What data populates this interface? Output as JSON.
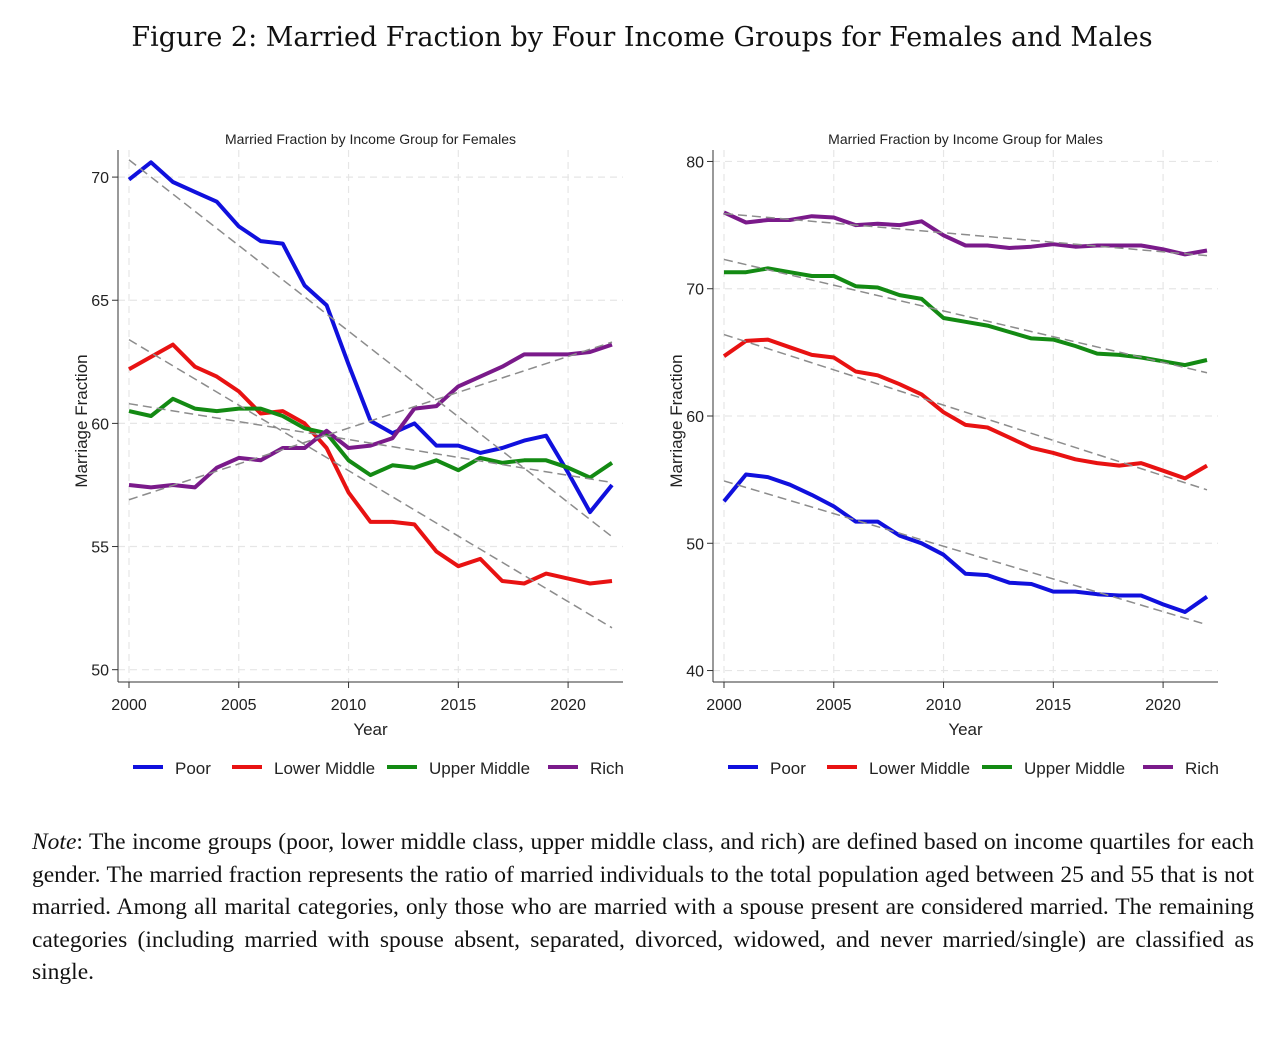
{
  "figure_title": "Figure 2: Married Fraction by Four Income Groups for Females and Males",
  "note": {
    "label": "Note",
    "text": ": The income groups (poor, lower middle class, upper middle class, and rich) are defined based on income quartiles for each gender. The married fraction represents the ratio of married individuals to the total population aged between 25 and 55 that is not married. Among all marital categories, only those who are married with a spouse present are considered married.  The remaining categories (including married with spouse absent, separated, divorced, widowed, and never married/single) are classified as single."
  },
  "colors": {
    "Poor": "#1010dd",
    "Lower Middle": "#e81212",
    "Upper Middle": "#138a13",
    "Rich": "#7a1a8a",
    "trend": "#8c8c8c"
  },
  "chart_data": [
    {
      "type": "line",
      "title": "Married Fraction by Income Group for Females",
      "xlabel": "Year",
      "ylabel": "Marriage Fraction",
      "xlim": [
        2000,
        2022
      ],
      "ylim": [
        49.5,
        71.1
      ],
      "xticks": [
        2000,
        2005,
        2010,
        2015,
        2020
      ],
      "yticks": [
        50,
        55,
        60,
        65,
        70
      ],
      "x": [
        2000,
        2001,
        2002,
        2003,
        2004,
        2005,
        2006,
        2007,
        2008,
        2009,
        2010,
        2011,
        2012,
        2013,
        2014,
        2015,
        2016,
        2017,
        2018,
        2019,
        2020,
        2021,
        2022
      ],
      "series": [
        {
          "name": "Poor",
          "values": [
            69.9,
            70.6,
            69.8,
            69.4,
            69.0,
            68.0,
            67.4,
            67.3,
            65.6,
            64.8,
            62.4,
            60.1,
            59.6,
            60.0,
            59.1,
            59.1,
            58.8,
            59.0,
            59.3,
            59.5,
            58.0,
            56.4,
            57.5
          ]
        },
        {
          "name": "Lower Middle",
          "values": [
            62.2,
            62.7,
            63.2,
            62.3,
            61.9,
            61.3,
            60.4,
            60.5,
            60.0,
            59.0,
            57.2,
            56.0,
            56.0,
            55.9,
            54.8,
            54.2,
            54.5,
            53.6,
            53.5,
            53.9,
            53.7,
            53.5,
            53.6
          ]
        },
        {
          "name": "Upper Middle",
          "values": [
            60.5,
            60.3,
            61.0,
            60.6,
            60.5,
            60.6,
            60.6,
            60.3,
            59.8,
            59.6,
            58.5,
            57.9,
            58.3,
            58.2,
            58.5,
            58.1,
            58.6,
            58.4,
            58.5,
            58.5,
            58.2,
            57.8,
            58.4
          ]
        },
        {
          "name": "Rich",
          "values": [
            57.5,
            57.4,
            57.5,
            57.4,
            58.2,
            58.6,
            58.5,
            59.0,
            59.0,
            59.7,
            59.0,
            59.1,
            59.4,
            60.6,
            60.7,
            61.5,
            61.9,
            62.3,
            62.8,
            62.8,
            62.8,
            62.9,
            63.2
          ]
        }
      ],
      "trend_lines": [
        {
          "name": "Poor",
          "start": 70.7,
          "end": 55.4
        },
        {
          "name": "Lower Middle",
          "start": 63.4,
          "end": 51.7
        },
        {
          "name": "Upper Middle",
          "start": 60.8,
          "end": 57.6
        },
        {
          "name": "Rich",
          "start": 56.9,
          "end": 63.3
        }
      ],
      "legend": [
        "Poor",
        "Lower Middle",
        "Upper Middle",
        "Rich"
      ]
    },
    {
      "type": "line",
      "title": "Married Fraction by Income Group for Males",
      "xlabel": "Year",
      "ylabel": "Marriage Fraction",
      "xlim": [
        2000,
        2022
      ],
      "ylim": [
        39.1,
        80.9
      ],
      "xticks": [
        2000,
        2005,
        2010,
        2015,
        2020
      ],
      "yticks": [
        40,
        50,
        60,
        70,
        80
      ],
      "x": [
        2000,
        2001,
        2002,
        2003,
        2004,
        2005,
        2006,
        2007,
        2008,
        2009,
        2010,
        2011,
        2012,
        2013,
        2014,
        2015,
        2016,
        2017,
        2018,
        2019,
        2020,
        2021,
        2022
      ],
      "series": [
        {
          "name": "Poor",
          "values": [
            53.3,
            55.4,
            55.2,
            54.6,
            53.8,
            52.9,
            51.7,
            51.7,
            50.6,
            50.0,
            49.1,
            47.6,
            47.5,
            46.9,
            46.8,
            46.2,
            46.2,
            46.0,
            45.9,
            45.9,
            45.2,
            44.6,
            45.8
          ]
        },
        {
          "name": "Lower Middle",
          "values": [
            64.7,
            65.9,
            66.0,
            65.4,
            64.8,
            64.6,
            63.5,
            63.2,
            62.5,
            61.7,
            60.3,
            59.3,
            59.1,
            58.3,
            57.5,
            57.1,
            56.6,
            56.3,
            56.1,
            56.3,
            55.7,
            55.1,
            56.1
          ]
        },
        {
          "name": "Upper Middle",
          "values": [
            71.3,
            71.3,
            71.6,
            71.3,
            71.0,
            71.0,
            70.2,
            70.1,
            69.5,
            69.2,
            67.7,
            67.4,
            67.1,
            66.6,
            66.1,
            66.0,
            65.5,
            64.9,
            64.8,
            64.6,
            64.3,
            64.0,
            64.4
          ]
        },
        {
          "name": "Rich",
          "values": [
            76.0,
            75.2,
            75.4,
            75.4,
            75.7,
            75.6,
            75.0,
            75.1,
            75.0,
            75.3,
            74.2,
            73.4,
            73.4,
            73.2,
            73.3,
            73.5,
            73.3,
            73.4,
            73.4,
            73.4,
            73.1,
            72.7,
            73.0
          ]
        }
      ],
      "trend_lines": [
        {
          "name": "Poor",
          "start": 54.9,
          "end": 43.6
        },
        {
          "name": "Lower Middle",
          "start": 66.4,
          "end": 54.2
        },
        {
          "name": "Upper Middle",
          "start": 72.3,
          "end": 63.4
        },
        {
          "name": "Rich",
          "start": 75.9,
          "end": 72.6
        }
      ],
      "legend": [
        "Poor",
        "Lower Middle",
        "Upper Middle",
        "Rich"
      ]
    }
  ]
}
